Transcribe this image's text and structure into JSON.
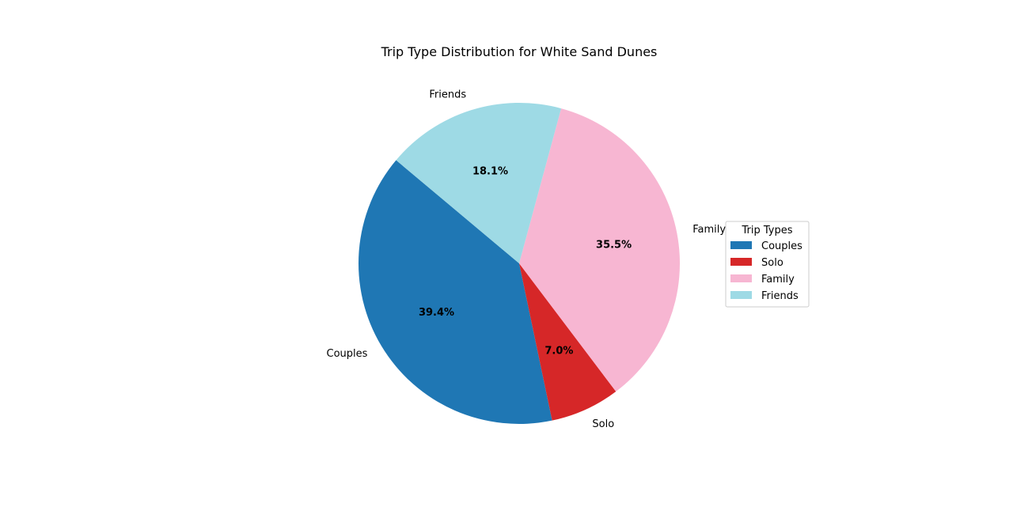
{
  "chart_data": {
    "type": "pie",
    "title": "Trip Type Distribution for White Sand Dunes",
    "categories": [
      "Couples",
      "Solo",
      "Family",
      "Friends"
    ],
    "values": [
      39.4,
      7.0,
      35.5,
      18.1
    ],
    "percent_labels": [
      "39.4%",
      "7.0%",
      "35.5%",
      "18.1%"
    ],
    "colors": [
      "#1f77b4",
      "#d62728",
      "#f7b6d2",
      "#9edae5"
    ],
    "start_angle_deg": 140,
    "direction": "counterclockwise",
    "legend": {
      "title": "Trip Types",
      "placement": "right",
      "entries": [
        "Couples",
        "Solo",
        "Family",
        "Friends"
      ]
    }
  }
}
